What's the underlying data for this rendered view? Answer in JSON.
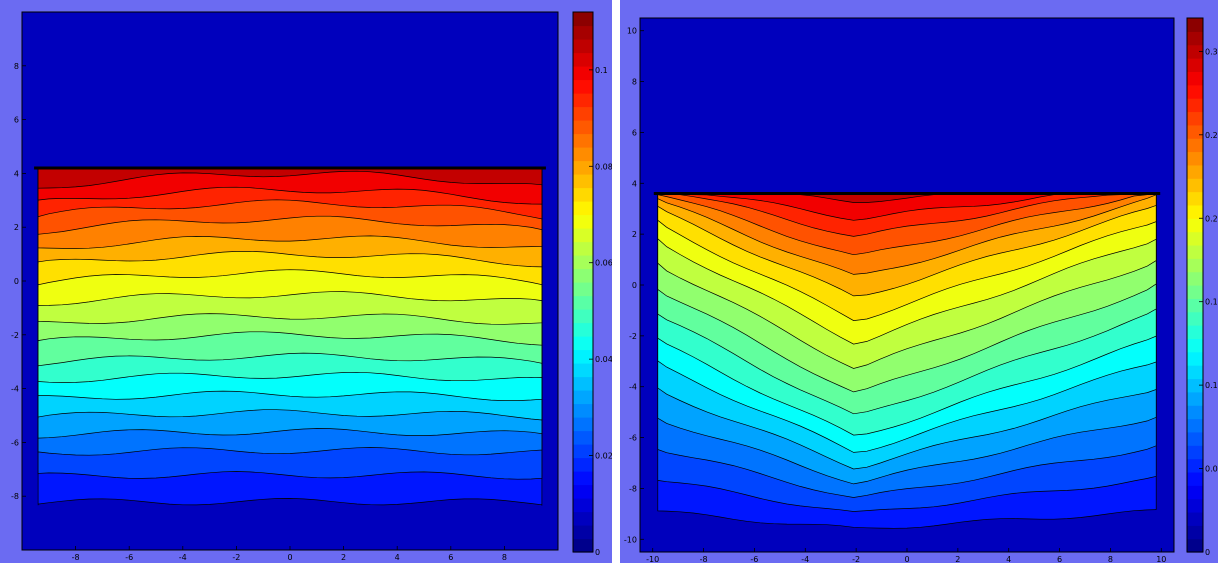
{
  "chart_data": [
    {
      "type": "heatmap",
      "subtype": "filled-contour",
      "colormap": "jet",
      "xlim": [
        -10,
        10
      ],
      "ylim": [
        -10,
        10
      ],
      "xticks": [
        "-8",
        "-6",
        "-4",
        "-2",
        "0",
        "2",
        "4",
        "6",
        "8"
      ],
      "yticks": [
        "-8",
        "-6",
        "-4",
        "-2",
        "0",
        "2",
        "4",
        "6",
        "8"
      ],
      "colorbar": {
        "range": [
          0,
          0.112
        ],
        "ticks": [
          "0",
          "0.02",
          "0.04",
          "0.06",
          "0.08",
          "0.1"
        ]
      },
      "field_top_y": 4.2,
      "field_bottom_y": -8.8,
      "levels": 18,
      "peak_value": 0.112,
      "peak_location": "top edge, x from -2 to 6",
      "shape": "flat horizontal bands",
      "levels_y_at_center": [
        4.0,
        3.4,
        2.9,
        2.3,
        1.6,
        1.0,
        0.3,
        -0.5,
        -1.3,
        -2.0,
        -2.8,
        -3.5,
        -4.2,
        -4.9,
        -5.6,
        -6.3,
        -7.2,
        -8.2
      ]
    },
    {
      "type": "heatmap",
      "subtype": "filled-contour",
      "colormap": "jet",
      "xlim": [
        -10.5,
        10.5
      ],
      "ylim": [
        -10.5,
        10.5
      ],
      "xticks": [
        "-10",
        "-8",
        "-6",
        "-4",
        "-2",
        "0",
        "2",
        "4",
        "6",
        "8",
        "10"
      ],
      "yticks": [
        "-10",
        "-8",
        "-6",
        "-4",
        "-2",
        "0",
        "2",
        "4",
        "6",
        "8",
        "10"
      ],
      "colorbar": {
        "range": [
          0,
          0.32
        ],
        "ticks": [
          "0",
          "0.05",
          "0.1",
          "0.15",
          "0.2",
          "0.25",
          "0.3"
        ]
      },
      "field_top_y": 3.6,
      "field_bottom_y": -10.5,
      "levels": 18,
      "peak_value": 0.32,
      "peak_location": "top edge, x near -2",
      "shape": "V-shaped bands deepest near x = -2",
      "levels_y_at_center": [
        3.3,
        2.6,
        1.9,
        1.1,
        0.3,
        -0.5,
        -1.4,
        -2.3,
        -3.3,
        -4.3,
        -5.2,
        -6.0,
        -6.6,
        -7.2,
        -7.8,
        -8.4,
        -9.0,
        -9.6
      ]
    }
  ]
}
